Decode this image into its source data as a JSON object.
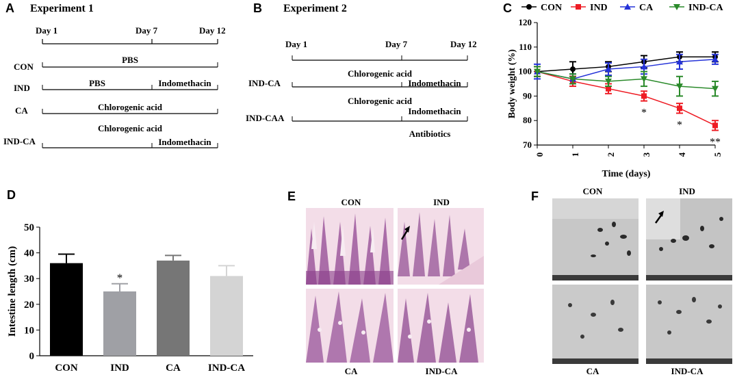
{
  "panelA": {
    "letter": "A",
    "title": "Experiment 1",
    "days": [
      "Day 1",
      "Day 7",
      "Day 12"
    ],
    "groups": [
      {
        "name": "CON",
        "segments": [
          "PBS"
        ]
      },
      {
        "name": "IND",
        "segments": [
          "PBS",
          "Indomethacin"
        ]
      },
      {
        "name": "CA",
        "segments": [
          "Chlorogenic acid"
        ]
      },
      {
        "name": "IND-CA",
        "segments": [
          "Chlorogenic acid",
          "Indomethacin"
        ]
      }
    ]
  },
  "panelB": {
    "letter": "B",
    "title": "Experiment 2",
    "days": [
      "Day 1",
      "Day 7",
      "Day 12"
    ],
    "groups": [
      {
        "name": "IND-CA",
        "segments": [
          "Chlorogenic acid",
          "Indomethacin"
        ]
      },
      {
        "name": "IND-CAA",
        "segments": [
          "Chlorogenic acid",
          "Indomethacin"
        ],
        "extra": "Antibiotics"
      }
    ]
  },
  "panelC": {
    "letter": "C"
  },
  "panelD": {
    "letter": "D"
  },
  "panelE": {
    "letter": "E",
    "labels": [
      "CON",
      "IND",
      "CA",
      "IND-CA"
    ]
  },
  "panelF": {
    "letter": "F",
    "labels": [
      "CON",
      "IND",
      "CA",
      "IND-CA"
    ]
  },
  "chart_data": [
    {
      "type": "line",
      "panel": "C",
      "xlabel": "Time (days)",
      "ylabel": "Body weight (%)",
      "x": [
        0,
        1,
        2,
        3,
        4,
        5
      ],
      "xlim": [
        0,
        5
      ],
      "ylim": [
        70,
        120
      ],
      "yticks": [
        70,
        80,
        90,
        100,
        110,
        120
      ],
      "legend_position": "top",
      "series": [
        {
          "name": "CON",
          "color": "#000000",
          "marker": "circle",
          "values": [
            100,
            101,
            102,
            104,
            106,
            106
          ],
          "errors": [
            2,
            3,
            2,
            2.5,
            2,
            2
          ]
        },
        {
          "name": "IND",
          "color": "#ee1c24",
          "marker": "square",
          "values": [
            100,
            96,
            93,
            90,
            85,
            78
          ],
          "errors": [
            2,
            2,
            2,
            2,
            2,
            2
          ]
        },
        {
          "name": "CA",
          "color": "#2432d8",
          "marker": "triangle-up",
          "values": [
            100,
            97,
            101,
            102,
            104,
            105
          ],
          "errors": [
            3,
            2,
            2.5,
            3,
            3,
            2
          ]
        },
        {
          "name": "IND-CA",
          "color": "#2a8a2a",
          "marker": "triangle-down",
          "values": [
            100,
            97,
            96,
            97,
            94,
            93
          ],
          "errors": [
            2,
            2,
            2,
            3,
            4,
            3
          ]
        }
      ],
      "annotations": [
        {
          "x": 3,
          "text": "*"
        },
        {
          "x": 4,
          "text": "*"
        },
        {
          "x": 5,
          "text": "**"
        }
      ]
    },
    {
      "type": "bar",
      "panel": "D",
      "categories": [
        "CON",
        "IND",
        "CA",
        "IND-CA"
      ],
      "values": [
        36,
        25,
        37,
        31
      ],
      "errors": [
        3.5,
        3,
        2,
        4
      ],
      "colors": [
        "#000000",
        "#9fa0a5",
        "#767676",
        "#d4d4d4"
      ],
      "ylabel": "Intestine length (cm)",
      "xlabel": "",
      "ylim": [
        0,
        50
      ],
      "yticks": [
        0,
        10,
        20,
        30,
        40,
        50
      ],
      "annotations": [
        {
          "category": "IND",
          "text": "*"
        }
      ]
    }
  ]
}
